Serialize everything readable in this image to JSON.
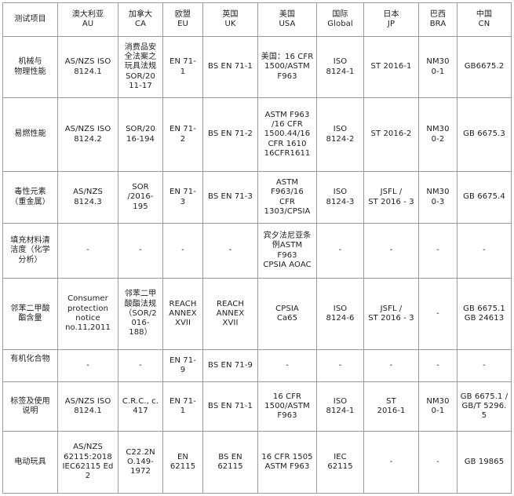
{
  "table": {
    "headers": [
      "测试项目",
      "澳大利亚\nAU",
      "加拿大\nCA",
      "欧盟\nEU",
      "英国\nUK",
      "美国\nUSA",
      "国际\nGlobal",
      "日本\nJP",
      "巴西\nBRA",
      "中国\nCN"
    ],
    "rows": [
      [
        "机械与\n物理性能",
        "AS/NZS ISO\n8124.1",
        "消费品安\n全法案之\n玩具法规\nSOR/20\n11-17",
        "EN 71-\n1",
        "BS EN 71-1",
        "美国：16 CFR\n1500/ASTM\nF963",
        "ISO\n8124-1",
        "ST 2016-1",
        "NM30\n0-1",
        "GB6675.2"
      ],
      [
        "易燃性能",
        "AS/NZS ISO\n8124.2",
        "SOR/20\n16-194",
        "EN 71-\n2",
        "BS EN 71-2",
        "ASTM F963\n/16 CFR\n1500.44/16\nCFR 1610\n16CFR1611",
        "ISO\n8124-2",
        "ST 2016-2",
        "NM30\n0-2",
        "GB 6675.3"
      ],
      [
        "毒性元素\n（重金属）",
        "AS/NZS\n8124.3",
        "SOR\n/2016-\n195",
        "EN 71-\n3",
        "BS EN 71-3",
        "ASTM\nF963/16\nCFR\n1303/CPSIA",
        "ISO\n8124-3",
        "JSFL /\nST 2016 - 3",
        "NM30\n0-3",
        "GB 6675.4"
      ],
      [
        "填充材料清\n洁度（化学\n分析）",
        "-",
        "-",
        "-",
        "-",
        "宾夕法尼亚条\n例ASTM\nF963\nCPSIA AOAC",
        "-",
        "-",
        "-",
        "-"
      ],
      [
        "邻苯二甲酸\n酯含量",
        "Consumer\nprotection\nnotice\nno.11,2011",
        "邻苯二甲\n酸酯法规\n（SOR/2\n016-\n188）",
        "REACH\nANNEX\nXVII",
        "REACH\nANNEX\nXVII",
        "CPSIA\nCa65",
        "ISO\n8124-6",
        "JSFL /\nST 2016 - 3",
        "-",
        "GB 6675.1\nGB 24613"
      ],
      [
        "有机化合物",
        "-",
        "-",
        "EN 71-\n9",
        "BS EN 71-9",
        "-",
        "-",
        "-",
        "-",
        "-"
      ],
      [
        "标签及使用\n说明",
        "AS/NZS ISO\n8124.1",
        "C.R.C., c.\n417",
        "EN 71-\n1",
        "BS EN 71-1",
        "16 CFR\n1500/ASTM\nF963",
        "ISO\n8124-1",
        "ST\n2016-1",
        "NM30\n0-1",
        "GB 6675.1 /\nGB/T 5296. 5"
      ],
      [
        "电动玩具",
        "AS/NZS\n62115:2018\nIEC62115 Ed\n2",
        "C22.2N\nO.149-\n1972",
        "EN\n62115",
        "BS EN\n62115",
        "16 CFR 1505\nASTM F963",
        "IEC\n62115",
        "-",
        "-",
        "GB 19865"
      ]
    ]
  }
}
